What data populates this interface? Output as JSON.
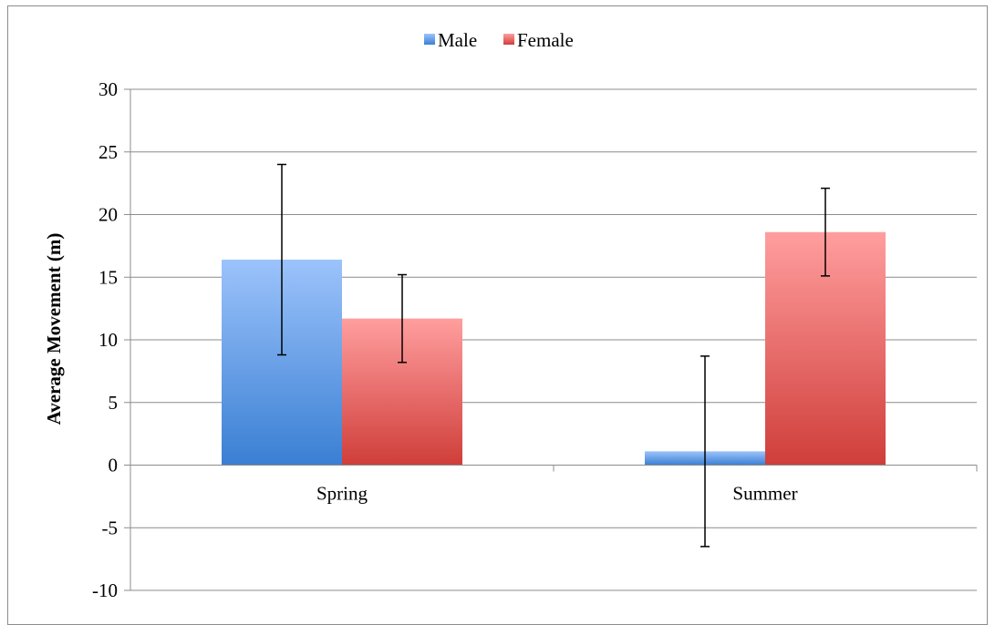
{
  "chart_data": {
    "type": "bar",
    "title": "",
    "xlabel": "",
    "ylabel": "Average Movement (m)",
    "categories": [
      "Spring",
      "Summer"
    ],
    "series": [
      {
        "name": "Male",
        "values": [
          16.4,
          1.1
        ],
        "error": [
          7.6,
          7.6
        ],
        "color_top": "#9cc3fb",
        "color_bottom": "#3a7fd3"
      },
      {
        "name": "Female",
        "values": [
          11.7,
          18.6
        ],
        "error": [
          3.5,
          3.5
        ],
        "color_top": "#ff9e9e",
        "color_bottom": "#cf3e3a"
      }
    ],
    "ylim": [
      -10,
      30
    ],
    "yticks": [
      -10,
      -5,
      0,
      5,
      10,
      15,
      20,
      25,
      30
    ],
    "grid": true,
    "legend_position": "top-center"
  }
}
